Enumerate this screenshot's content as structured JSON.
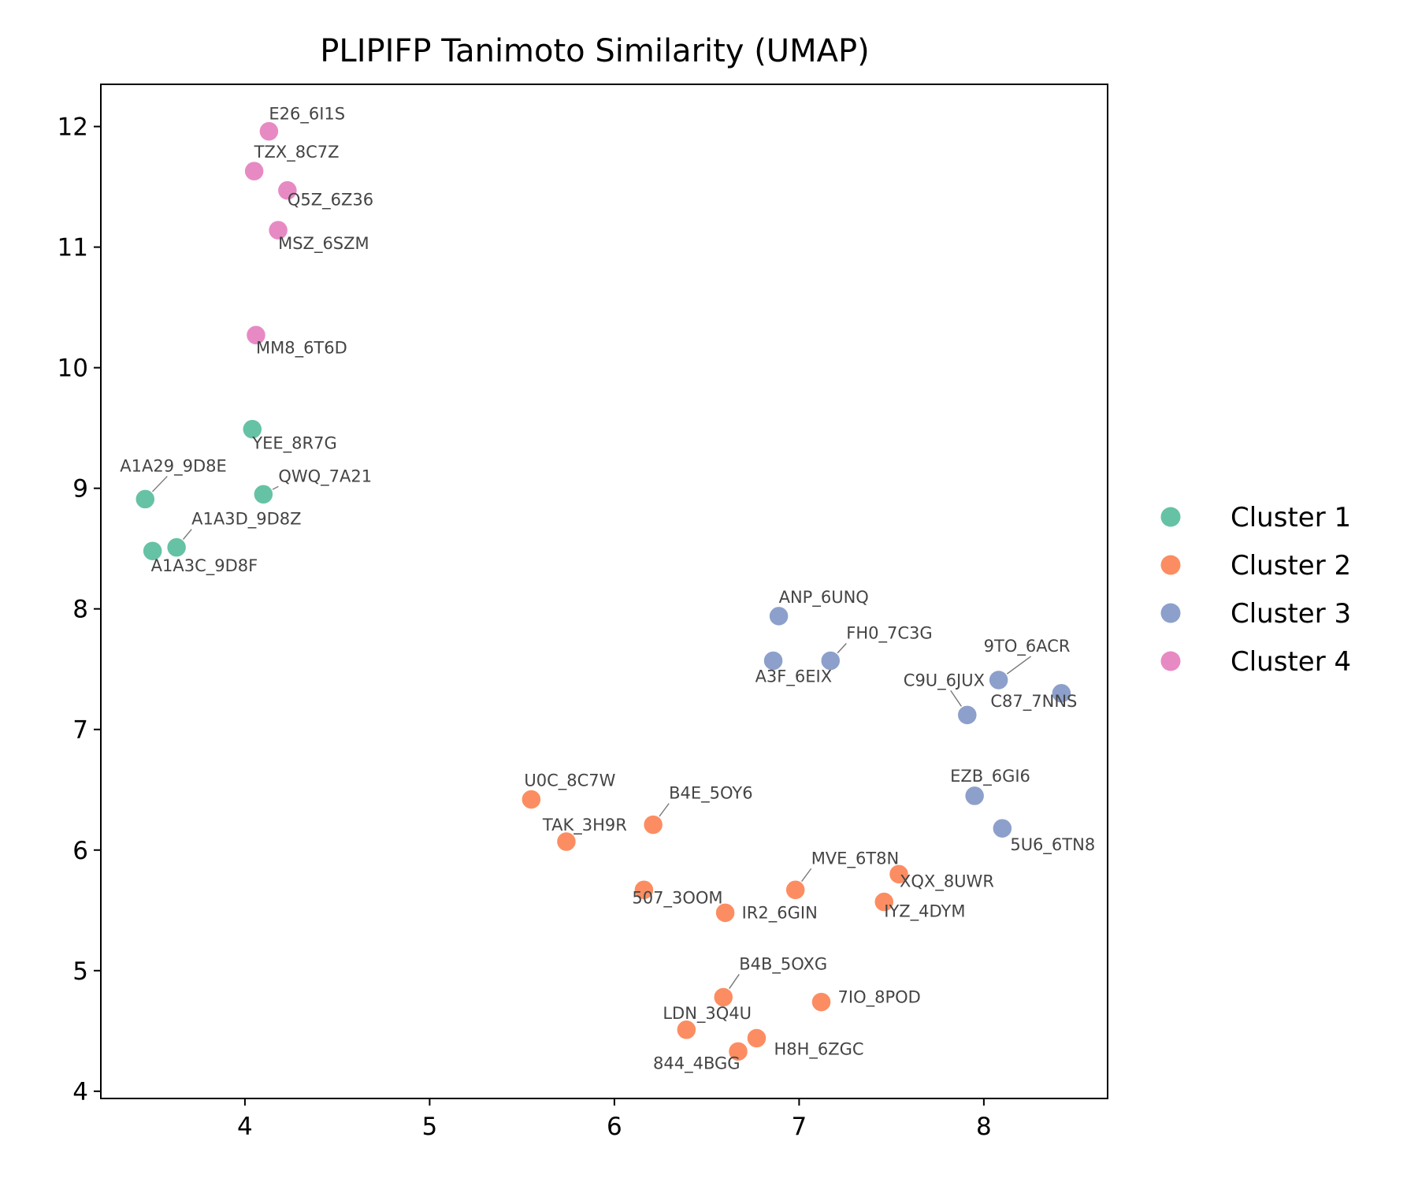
{
  "chart_data": {
    "type": "scatter",
    "title": "PLIPIFP Tanimoto Similarity (UMAP)",
    "xlabel": "",
    "ylabel": "",
    "xlim": [
      3.22,
      8.67
    ],
    "ylim": [
      3.94,
      12.35
    ],
    "xticks": [
      4,
      5,
      6,
      7,
      8
    ],
    "yticks": [
      4,
      5,
      6,
      7,
      8,
      9,
      10,
      11,
      12
    ],
    "grid": false,
    "legend_position": "right",
    "series": [
      {
        "name": "Cluster 1",
        "color": "#66c2a5",
        "points": [
          {
            "label": "YEE_8R7G",
            "x": 4.04,
            "y": 9.49
          },
          {
            "label": "A1A29_9D8E",
            "x": 3.46,
            "y": 8.91
          },
          {
            "label": "QWQ_7A21",
            "x": 4.1,
            "y": 8.95
          },
          {
            "label": "A1A3D_9D8Z",
            "x": 3.63,
            "y": 8.51
          },
          {
            "label": "A1A3C_9D8F",
            "x": 3.5,
            "y": 8.48
          }
        ]
      },
      {
        "name": "Cluster 2",
        "color": "#fc8d62",
        "points": [
          {
            "label": "U0C_8C7W",
            "x": 5.55,
            "y": 6.42
          },
          {
            "label": "B4E_5OY6",
            "x": 6.21,
            "y": 6.21
          },
          {
            "label": "TAK_3H9R",
            "x": 5.74,
            "y": 6.07
          },
          {
            "label": "MVE_6T8N",
            "x": 6.98,
            "y": 5.67
          },
          {
            "label": "XQX_8UWR",
            "x": 7.54,
            "y": 5.8
          },
          {
            "label": "507_3OOM",
            "x": 6.16,
            "y": 5.67
          },
          {
            "label": "IR2_6GIN",
            "x": 6.6,
            "y": 5.48
          },
          {
            "label": "IYZ_4DYM",
            "x": 7.46,
            "y": 5.57
          },
          {
            "label": "B4B_5OXG",
            "x": 6.59,
            "y": 4.78
          },
          {
            "label": "7IO_8POD",
            "x": 7.12,
            "y": 4.74
          },
          {
            "label": "LDN_3Q4U",
            "x": 6.39,
            "y": 4.51
          },
          {
            "label": "H8H_6ZGC",
            "x": 6.77,
            "y": 4.44
          },
          {
            "label": "844_4BGG",
            "x": 6.67,
            "y": 4.33
          }
        ]
      },
      {
        "name": "Cluster 3",
        "color": "#8da0cb",
        "points": [
          {
            "label": "ANP_6UNQ",
            "x": 6.89,
            "y": 7.94
          },
          {
            "label": "FH0_7C3G",
            "x": 7.17,
            "y": 7.57
          },
          {
            "label": "A3F_6EIX",
            "x": 6.86,
            "y": 7.57
          },
          {
            "label": "9TO_6ACR",
            "x": 8.08,
            "y": 7.41
          },
          {
            "label": "C9U_6JUX",
            "x": 7.91,
            "y": 7.12
          },
          {
            "label": "C87_7NNS",
            "x": 8.42,
            "y": 7.3
          },
          {
            "label": "EZB_6GI6",
            "x": 7.95,
            "y": 6.45
          },
          {
            "label": "5U6_6TN8",
            "x": 8.1,
            "y": 6.18
          }
        ]
      },
      {
        "name": "Cluster 4",
        "color": "#e78ac3",
        "points": [
          {
            "label": "E26_6I1S",
            "x": 4.13,
            "y": 11.96
          },
          {
            "label": "TZX_8C7Z",
            "x": 4.05,
            "y": 11.63
          },
          {
            "label": "Q5Z_6Z36",
            "x": 4.23,
            "y": 11.47
          },
          {
            "label": "MSZ_6SZM",
            "x": 4.18,
            "y": 11.14
          },
          {
            "label": "MM8_6T6D",
            "x": 4.06,
            "y": 10.27
          }
        ]
      }
    ]
  }
}
